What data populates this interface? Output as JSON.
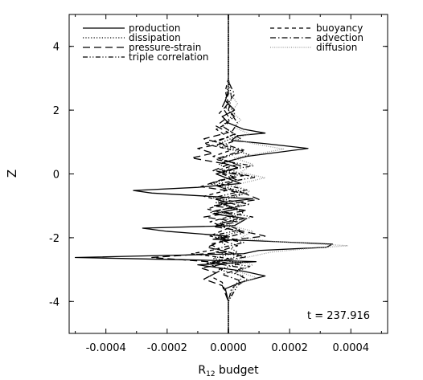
{
  "chart_data": {
    "type": "line",
    "xlabel_main": "R",
    "xlabel_sub": "12",
    "xlabel_rest": " budget",
    "ylabel": "Z",
    "xlim": [
      -0.00052,
      0.00052
    ],
    "ylim": [
      -5,
      5
    ],
    "xticks": [
      -0.0004,
      -0.0002,
      0.0,
      0.0002,
      0.0004
    ],
    "xtick_labels": [
      "-0.0004",
      "-0.0002",
      "0.0000",
      "0.0002",
      "0.0004"
    ],
    "yticks": [
      -4,
      -2,
      0,
      2,
      4
    ],
    "ytick_labels": [
      "-4",
      "-2",
      "0",
      "2",
      "4"
    ],
    "annotation": "t = 237.916",
    "legend_position": "top",
    "series": [
      {
        "name": "production",
        "dash": "solid",
        "points": [
          [
            0.0,
            -5.0
          ],
          [
            0.0,
            -4.0
          ],
          [
            -1e-05,
            -3.6
          ],
          [
            4e-05,
            -3.4
          ],
          [
            0.00012,
            -3.2
          ],
          [
            5e-05,
            -3.05
          ],
          [
            -0.0001,
            -2.85
          ],
          [
            9e-05,
            -2.75
          ],
          [
            -0.0001,
            -2.7
          ],
          [
            -0.0005,
            -2.62
          ],
          [
            5e-05,
            -2.5
          ],
          [
            0.0001,
            -2.4
          ],
          [
            0.00032,
            -2.3
          ],
          [
            0.00034,
            -2.2
          ],
          [
            0.0001,
            -2.1
          ],
          [
            -5e-05,
            -2.05
          ],
          [
            0.0,
            -1.95
          ],
          [
            -0.0002,
            -1.8
          ],
          [
            -0.00028,
            -1.7
          ],
          [
            2e-05,
            -1.62
          ],
          [
            6e-05,
            -1.4
          ],
          [
            -5e-05,
            -1.25
          ],
          [
            3e-05,
            -1.1
          ],
          [
            -3e-05,
            -0.9
          ],
          [
            8e-05,
            -0.78
          ],
          [
            -0.00025,
            -0.6
          ],
          [
            -0.00031,
            -0.52
          ],
          [
            -0.0001,
            -0.42
          ],
          [
            4e-05,
            -0.3
          ],
          [
            0.0,
            -0.15
          ],
          [
            -4e-05,
            0.0
          ],
          [
            3e-05,
            0.2
          ],
          [
            -2e-05,
            0.35
          ],
          [
            6e-05,
            0.55
          ],
          [
            0.00026,
            0.8
          ],
          [
            0.00012,
            0.95
          ],
          [
            1e-05,
            1.05
          ],
          [
            3e-05,
            1.2
          ],
          [
            0.00012,
            1.28
          ],
          [
            5e-05,
            1.4
          ],
          [
            0.0,
            1.6
          ],
          [
            -2e-05,
            1.8
          ],
          [
            2e-05,
            2.0
          ],
          [
            -1e-05,
            2.3
          ],
          [
            0.0,
            2.6
          ],
          [
            0.0,
            3.0
          ],
          [
            0.0,
            4.0
          ],
          [
            0.0,
            5.0
          ]
        ]
      },
      {
        "name": "dissipation",
        "dash": "dotted",
        "points": [
          [
            0.0,
            -5.0
          ],
          [
            0.0,
            -4.0
          ],
          [
            2e-05,
            -3.5
          ],
          [
            5e-05,
            -3.2
          ],
          [
            -3e-05,
            -3.0
          ],
          [
            4e-05,
            -2.8
          ],
          [
            -5e-05,
            -2.65
          ],
          [
            3e-05,
            -2.45
          ],
          [
            0.0,
            -2.3
          ],
          [
            -4e-05,
            -2.0
          ],
          [
            4e-05,
            -1.8
          ],
          [
            -2e-05,
            -1.5
          ],
          [
            5e-05,
            -1.2
          ],
          [
            -4e-05,
            -0.9
          ],
          [
            6e-05,
            -0.6
          ],
          [
            -5e-05,
            -0.3
          ],
          [
            4e-05,
            0.0
          ],
          [
            -3e-05,
            0.3
          ],
          [
            7e-05,
            0.6
          ],
          [
            -4e-05,
            0.9
          ],
          [
            3e-05,
            1.2
          ],
          [
            -2e-05,
            1.5
          ],
          [
            2e-05,
            1.9
          ],
          [
            -1e-05,
            2.3
          ],
          [
            0.0,
            2.8
          ],
          [
            0.0,
            3.5
          ],
          [
            0.0,
            5.0
          ]
        ]
      },
      {
        "name": "pressure-strain",
        "dash": "dashed",
        "points": [
          [
            0.0,
            -5.0
          ],
          [
            0.0,
            -4.0
          ],
          [
            -2e-05,
            -3.5
          ],
          [
            -8e-05,
            -3.3
          ],
          [
            -4e-05,
            -3.1
          ],
          [
            -9e-05,
            -2.95
          ],
          [
            0.0,
            -2.8
          ],
          [
            -0.00025,
            -2.62
          ],
          [
            -0.0001,
            -2.52
          ],
          [
            0.0,
            -2.45
          ],
          [
            -7e-05,
            -2.3
          ],
          [
            -2e-05,
            -2.1
          ],
          [
            0.00012,
            -1.95
          ],
          [
            5e-05,
            -1.8
          ],
          [
            -5e-05,
            -1.65
          ],
          [
            3e-05,
            -1.5
          ],
          [
            -8e-05,
            -1.35
          ],
          [
            6e-05,
            -1.15
          ],
          [
            -5e-05,
            -1.0
          ],
          [
            0.0001,
            -0.8
          ],
          [
            5e-05,
            -0.6
          ],
          [
            -9e-05,
            -0.4
          ],
          [
            -3e-05,
            -0.2
          ],
          [
            5e-05,
            -0.05
          ],
          [
            -5e-05,
            0.1
          ],
          [
            0.0,
            0.3
          ],
          [
            -0.00012,
            0.5
          ],
          [
            -5e-05,
            0.65
          ],
          [
            -0.0001,
            0.8
          ],
          [
            -2e-05,
            0.95
          ],
          [
            -8e-05,
            1.1
          ],
          [
            0.0,
            1.3
          ],
          [
            -4e-05,
            1.5
          ],
          [
            0.0,
            1.8
          ],
          [
            -2e-05,
            2.1
          ],
          [
            0.0,
            2.5
          ],
          [
            0.0,
            3.0
          ],
          [
            0.0,
            5.0
          ]
        ]
      },
      {
        "name": "triple correlation",
        "dash": "dash-dot-dot",
        "points": [
          [
            0.0,
            -5.0
          ],
          [
            0.0,
            -4.0
          ],
          [
            3e-05,
            -3.5
          ],
          [
            6e-05,
            -3.3
          ],
          [
            2e-05,
            -3.1
          ],
          [
            7e-05,
            -2.9
          ],
          [
            -3e-05,
            -2.75
          ],
          [
            4e-05,
            -2.55
          ],
          [
            -4e-05,
            -2.35
          ],
          [
            5e-05,
            -2.15
          ],
          [
            -6e-05,
            -1.95
          ],
          [
            4e-05,
            -1.75
          ],
          [
            -3e-05,
            -1.55
          ],
          [
            8e-05,
            -1.35
          ],
          [
            -4e-05,
            -1.15
          ],
          [
            7e-05,
            -0.95
          ],
          [
            -5e-05,
            -0.75
          ],
          [
            6e-05,
            -0.5
          ],
          [
            -3e-05,
            -0.3
          ],
          [
            9e-05,
            -0.1
          ],
          [
            -2e-05,
            0.1
          ],
          [
            8e-05,
            0.25
          ],
          [
            -4e-05,
            0.45
          ],
          [
            5e-05,
            0.7
          ],
          [
            -2e-05,
            0.9
          ],
          [
            4e-05,
            1.1
          ],
          [
            1e-05,
            1.3
          ],
          [
            3e-05,
            1.6
          ],
          [
            0.0,
            2.0
          ],
          [
            1e-05,
            2.4
          ],
          [
            0.0,
            3.0
          ],
          [
            0.0,
            5.0
          ]
        ]
      },
      {
        "name": "buoyancy",
        "dash": "medium-dash",
        "points": [
          [
            0.0,
            -5.0
          ],
          [
            0.0,
            -4.0
          ],
          [
            -2e-05,
            -3.4
          ],
          [
            -6e-05,
            -3.2
          ],
          [
            -2e-05,
            -3.0
          ],
          [
            -7e-05,
            -2.8
          ],
          [
            0.0,
            -2.65
          ],
          [
            -0.00012,
            -2.5
          ],
          [
            -3e-05,
            -2.35
          ],
          [
            -6e-05,
            -2.2
          ],
          [
            2e-05,
            -2.05
          ],
          [
            -5e-05,
            -1.9
          ],
          [
            0.0,
            -1.7
          ],
          [
            -6e-05,
            -1.5
          ],
          [
            2e-05,
            -1.3
          ],
          [
            -7e-05,
            -1.1
          ],
          [
            0.0,
            -0.9
          ],
          [
            -8e-05,
            -0.7
          ],
          [
            0.0,
            -0.5
          ],
          [
            -6e-05,
            -0.3
          ],
          [
            2e-05,
            -0.1
          ],
          [
            -4e-05,
            0.1
          ],
          [
            3e-05,
            0.3
          ],
          [
            -5e-05,
            0.55
          ],
          [
            1e-05,
            0.75
          ],
          [
            -8e-05,
            0.95
          ],
          [
            0.0,
            1.15
          ],
          [
            -4e-05,
            1.4
          ],
          [
            0.0,
            1.6
          ],
          [
            -3e-05,
            1.9
          ],
          [
            0.0,
            2.2
          ],
          [
            -1e-05,
            2.6
          ],
          [
            0.0,
            3.0
          ],
          [
            0.0,
            5.0
          ]
        ]
      },
      {
        "name": "advection",
        "dash": "dash-dot",
        "points": [
          [
            0.0,
            -5.0
          ],
          [
            0.0,
            -4.0
          ],
          [
            1e-05,
            -3.6
          ],
          [
            4e-05,
            -3.35
          ],
          [
            -2e-05,
            -3.15
          ],
          [
            5e-05,
            -2.95
          ],
          [
            -6e-05,
            -2.78
          ],
          [
            6e-05,
            -2.6
          ],
          [
            -4e-05,
            -2.45
          ],
          [
            3e-05,
            -2.25
          ],
          [
            -3e-05,
            -2.05
          ],
          [
            5e-05,
            -1.85
          ],
          [
            -4e-05,
            -1.6
          ],
          [
            3e-05,
            -1.4
          ],
          [
            -6e-05,
            -1.2
          ],
          [
            4e-05,
            -1.0
          ],
          [
            -4e-05,
            -0.8
          ],
          [
            5e-05,
            -0.6
          ],
          [
            -3e-05,
            -0.4
          ],
          [
            3e-05,
            -0.2
          ],
          [
            -2e-05,
            0.0
          ],
          [
            4e-05,
            0.25
          ],
          [
            -3e-05,
            0.5
          ],
          [
            5e-05,
            0.75
          ],
          [
            -4e-05,
            1.0
          ],
          [
            2e-05,
            1.25
          ],
          [
            -2e-05,
            1.5
          ],
          [
            2e-05,
            1.8
          ],
          [
            -1e-05,
            2.1
          ],
          [
            2e-05,
            2.5
          ],
          [
            0.0,
            2.9
          ],
          [
            0.0,
            3.5
          ],
          [
            0.0,
            5.0
          ]
        ]
      },
      {
        "name": "diffusion",
        "dash": "fine-dotted",
        "color": "#9a9a9a",
        "points": [
          [
            0.0,
            -5.0
          ],
          [
            0.0,
            -4.0
          ],
          [
            2e-05,
            -3.5
          ],
          [
            9e-05,
            -3.25
          ],
          [
            3e-05,
            -3.05
          ],
          [
            8e-05,
            -2.85
          ],
          [
            2e-05,
            -2.7
          ],
          [
            0.00014,
            -2.45
          ],
          [
            0.00025,
            -2.35
          ],
          [
            0.00039,
            -2.25
          ],
          [
            0.00015,
            -2.12
          ],
          [
            4e-05,
            -2.0
          ],
          [
            8e-05,
            -1.8
          ],
          [
            0.0,
            -1.6
          ],
          [
            6e-05,
            -1.4
          ],
          [
            -3e-05,
            -1.2
          ],
          [
            5e-05,
            -1.0
          ],
          [
            -2e-05,
            -0.8
          ],
          [
            7e-05,
            -0.55
          ],
          [
            2e-05,
            -0.35
          ],
          [
            0.00012,
            -0.12
          ],
          [
            4e-05,
            0.05
          ],
          [
            8e-05,
            0.3
          ],
          [
            2e-05,
            0.5
          ],
          [
            0.00018,
            0.78
          ],
          [
            8e-05,
            0.95
          ],
          [
            2e-05,
            1.1
          ],
          [
            7e-05,
            1.25
          ],
          [
            2e-05,
            1.45
          ],
          [
            4e-05,
            1.7
          ],
          [
            1e-05,
            1.95
          ],
          [
            3e-05,
            2.2
          ],
          [
            0.0,
            2.6
          ],
          [
            0.0,
            3.0
          ],
          [
            0.0,
            5.0
          ]
        ]
      }
    ]
  }
}
